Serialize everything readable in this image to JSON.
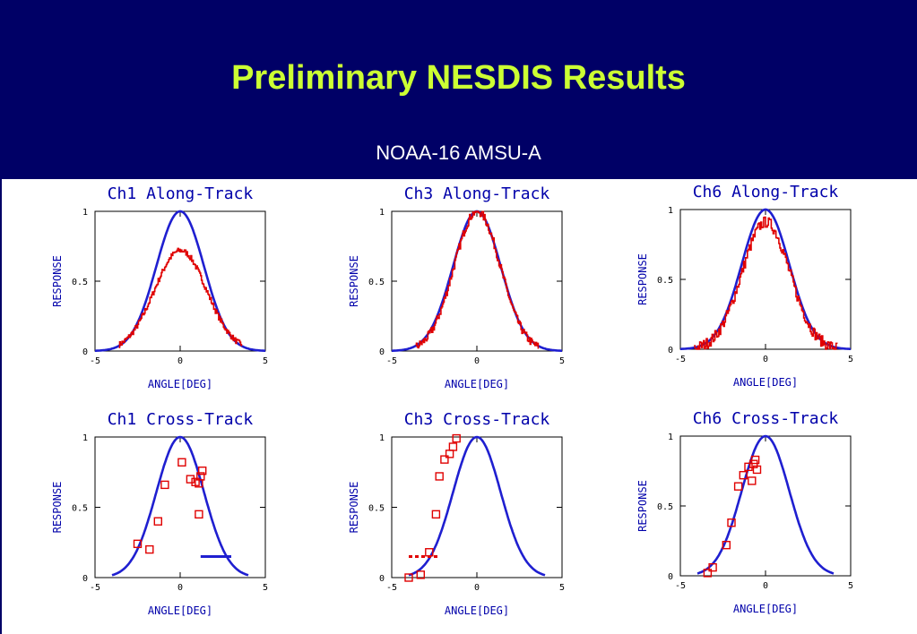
{
  "header": {
    "title": "Preliminary NESDIS Results",
    "subtitle": "NOAA-16 AMSU-A"
  },
  "colors": {
    "header_bg": "#000066",
    "title": "#ccff33",
    "model": "#1f1fd0",
    "measured": "#e00000",
    "axis_label": "#0000aa"
  },
  "chart_data": [
    {
      "type": "line",
      "title": "Ch1 Along-Track",
      "xlabel": "ANGLE[DEG]",
      "ylabel": "RESPONSE",
      "xlim": [
        -5,
        5
      ],
      "ylim": [
        0,
        1
      ],
      "x_ticks": [
        "-5",
        "0",
        "5"
      ],
      "y_ticks": [
        "0",
        "0.5",
        "1"
      ],
      "series": [
        {
          "kind": "curve",
          "color": "#1f1fd0",
          "fwhm": 3.3,
          "amplitude": 1.0,
          "x_range": [
            -5,
            5
          ]
        },
        {
          "kind": "noisy",
          "color": "#e00000",
          "fwhm": 3.6,
          "amplitude": 0.72,
          "x_range": [
            -3.6,
            3.6
          ],
          "noise": 0.02
        }
      ]
    },
    {
      "type": "line",
      "title": "Ch3 Along-Track",
      "xlabel": "ANGLE[DEG]",
      "ylabel": "RESPONSE",
      "xlim": [
        -5,
        5
      ],
      "ylim": [
        0,
        1
      ],
      "x_ticks": [
        "-5",
        "0",
        "5"
      ],
      "y_ticks": [
        "0",
        "0.5",
        "1"
      ],
      "series": [
        {
          "kind": "curve",
          "color": "#1f1fd0",
          "fwhm": 3.3,
          "amplitude": 1.0,
          "x_range": [
            -5,
            5
          ]
        },
        {
          "kind": "noisy",
          "color": "#e00000",
          "fwhm": 3.2,
          "amplitude": 1.0,
          "x_range": [
            -3.6,
            3.6
          ],
          "noise": 0.03
        }
      ]
    },
    {
      "type": "line",
      "title": "Ch6 Along-Track",
      "xlabel": "ANGLE[DEG]",
      "ylabel": "RESPONSE",
      "xlim": [
        -5,
        5
      ],
      "ylim": [
        0,
        1
      ],
      "x_ticks": [
        "-5",
        "0",
        "5"
      ],
      "y_ticks": [
        "0",
        "0.5",
        "1"
      ],
      "series": [
        {
          "kind": "curve",
          "color": "#1f1fd0",
          "fwhm": 3.3,
          "amplitude": 1.0,
          "x_range": [
            -5,
            5
          ]
        },
        {
          "kind": "noisy",
          "color": "#e00000",
          "fwhm": 3.3,
          "amplitude": 0.91,
          "x_range": [
            -4.2,
            4.2
          ],
          "noise": 0.04
        }
      ]
    },
    {
      "type": "scatter",
      "title": "Ch1 Cross-Track",
      "xlabel": "ANGLE[DEG]",
      "ylabel": "RESPONSE",
      "xlim": [
        -5,
        5
      ],
      "ylim": [
        0,
        1
      ],
      "x_ticks": [
        "-5",
        "0",
        "5"
      ],
      "y_ticks": [
        "0",
        "0.5",
        "1"
      ],
      "series": [
        {
          "kind": "curve",
          "color": "#1f1fd0",
          "fwhm": 3.3,
          "amplitude": 1.0,
          "x_range": [
            -4,
            4
          ]
        },
        {
          "kind": "points",
          "color": "#e00000",
          "x": [
            -2.5,
            -1.8,
            -1.3,
            -0.9,
            0.1,
            0.6,
            0.9,
            1.1,
            1.2,
            1.3,
            1.1
          ],
          "y": [
            0.24,
            0.2,
            0.4,
            0.66,
            0.82,
            0.7,
            0.68,
            0.67,
            0.72,
            0.76,
            0.45
          ]
        },
        {
          "kind": "segment",
          "color": "#1f1fd0",
          "dashed": false,
          "x": [
            1.2,
            3.0
          ],
          "y": 0.15
        }
      ]
    },
    {
      "type": "scatter",
      "title": "Ch3 Cross-Track",
      "xlabel": "ANGLE[DEG]",
      "ylabel": "RESPONSE",
      "xlim": [
        -5,
        5
      ],
      "ylim": [
        0,
        1
      ],
      "x_ticks": [
        "-5",
        "0",
        "5"
      ],
      "y_ticks": [
        "0",
        "0.5",
        "1"
      ],
      "series": [
        {
          "kind": "curve",
          "color": "#1f1fd0",
          "fwhm": 3.3,
          "amplitude": 1.0,
          "x_range": [
            -4,
            4
          ]
        },
        {
          "kind": "points",
          "color": "#e00000",
          "x": [
            -4.0,
            -3.3,
            -2.8,
            -2.4,
            -2.2,
            -1.9,
            -1.6,
            -1.4,
            -1.2
          ],
          "y": [
            0.0,
            0.02,
            0.18,
            0.45,
            0.72,
            0.84,
            0.88,
            0.93,
            0.99
          ]
        },
        {
          "kind": "segment",
          "color": "#e00000",
          "dashed": true,
          "x": [
            -4.0,
            -2.2
          ],
          "y": 0.15
        }
      ]
    },
    {
      "type": "scatter",
      "title": "Ch6 Cross-Track",
      "xlabel": "ANGLE[DEG]",
      "ylabel": "RESPONSE",
      "xlim": [
        -5,
        5
      ],
      "ylim": [
        0,
        1
      ],
      "x_ticks": [
        "-5",
        "0",
        "5"
      ],
      "y_ticks": [
        "0",
        "0.5",
        "1"
      ],
      "series": [
        {
          "kind": "curve",
          "color": "#1f1fd0",
          "fwhm": 3.3,
          "amplitude": 1.0,
          "x_range": [
            -4,
            4
          ]
        },
        {
          "kind": "points",
          "color": "#e00000",
          "x": [
            -3.4,
            -3.1,
            -2.3,
            -2.0,
            -1.6,
            -1.3,
            -1.0,
            -0.8,
            -0.7,
            -0.6,
            -0.5
          ],
          "y": [
            0.02,
            0.06,
            0.22,
            0.38,
            0.64,
            0.72,
            0.78,
            0.68,
            0.8,
            0.83,
            0.76
          ]
        }
      ]
    }
  ]
}
